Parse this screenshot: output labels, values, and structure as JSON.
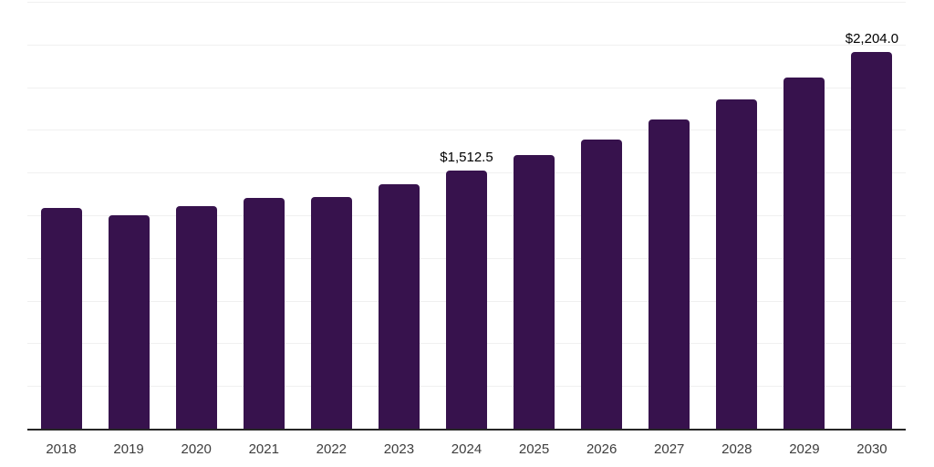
{
  "chart_data": {
    "type": "bar",
    "title": "",
    "xlabel": "",
    "ylabel": "",
    "categories": [
      "2018",
      "2019",
      "2020",
      "2021",
      "2022",
      "2023",
      "2024",
      "2025",
      "2026",
      "2027",
      "2028",
      "2029",
      "2030"
    ],
    "values": [
      1294,
      1248,
      1301,
      1352,
      1358,
      1430,
      1512.5,
      1601,
      1694,
      1812,
      1926,
      2059,
      2204
    ],
    "value_labels": {
      "2024": "$1,512.5",
      "2030": "$2,204.0"
    },
    "ylim": [
      0,
      2500
    ],
    "grid": true,
    "gridline_count": 10,
    "legend": false,
    "colors": {
      "bar": "#37124d",
      "gridline": "#f0f0f0",
      "axis_line": "#262626",
      "tick_label": "#3d3d3d",
      "value_label": "#000000",
      "background": "#ffffff"
    }
  }
}
